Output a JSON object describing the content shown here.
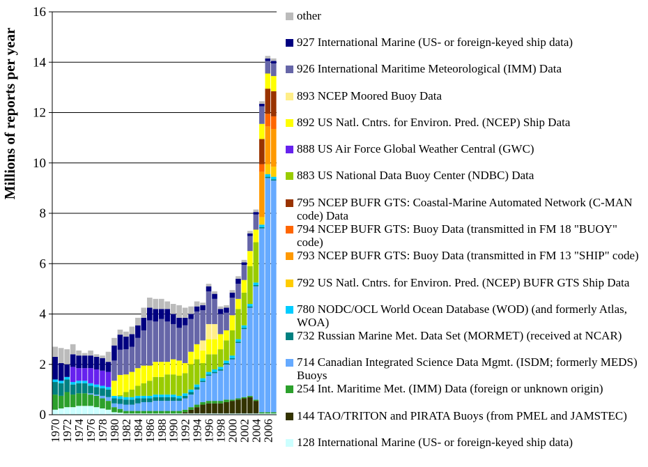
{
  "chart_data": {
    "type": "bar",
    "stacked": true,
    "ylabel": "Millions of reports per year",
    "xlabel": "",
    "ylim": [
      0,
      16
    ],
    "yticks": [
      0,
      2,
      4,
      6,
      8,
      10,
      12,
      14,
      16
    ],
    "grid": "horizontal",
    "legend_position": "right",
    "categories": [
      1970,
      1971,
      1972,
      1973,
      1974,
      1975,
      1976,
      1977,
      1978,
      1979,
      1980,
      1981,
      1982,
      1983,
      1984,
      1985,
      1986,
      1987,
      1988,
      1989,
      1990,
      1991,
      1992,
      1993,
      1994,
      1995,
      1996,
      1997,
      1998,
      1999,
      2000,
      2001,
      2002,
      2003,
      2004,
      2005,
      2006,
      2007
    ],
    "xtick_labels": [
      "1970",
      "1972",
      "1974",
      "1976",
      "1978",
      "1980",
      "1982",
      "1984",
      "1986",
      "1988",
      "1990",
      "1992",
      "1994",
      "1996",
      "1998",
      "2000",
      "2002",
      "2004",
      "2006"
    ],
    "series": [
      {
        "name": "128 International Marine (US- or foreign-keyed ship data)",
        "color": "#ccffff",
        "values": [
          0.2,
          0.25,
          0.3,
          0.3,
          0.35,
          0.35,
          0.35,
          0.3,
          0.25,
          0.2,
          0.1,
          0.08,
          0.05,
          0.05,
          0.05,
          0.05,
          0.05,
          0.05,
          0.05,
          0.05,
          0.05,
          0.05,
          0.05,
          0.05,
          0.05,
          0.05,
          0.05,
          0.05,
          0.05,
          0.05,
          0.05,
          0.05,
          0.05,
          0.05,
          0.05,
          0.05,
          0.05,
          0.05
        ]
      },
      {
        "name": "144 TAO/TRITON and PIRATA Buoys (from PMEL and JAMSTEC)",
        "color": "#333300",
        "values": [
          0,
          0,
          0,
          0,
          0,
          0,
          0,
          0,
          0,
          0,
          0,
          0,
          0,
          0,
          0,
          0,
          0,
          0,
          0,
          0,
          0,
          0,
          0.05,
          0.15,
          0.25,
          0.35,
          0.4,
          0.4,
          0.4,
          0.45,
          0.5,
          0.55,
          0.6,
          0.65,
          0.5,
          0,
          0,
          0
        ]
      },
      {
        "name": "254 Int. Maritime Met. (IMM) Data (foreign or unknown origin)",
        "color": "#2ca02c",
        "values": [
          0.6,
          0.5,
          0.6,
          0.5,
          0.5,
          0.5,
          0.45,
          0.45,
          0.4,
          0.35,
          0.2,
          0.15,
          0.1,
          0.1,
          0.1,
          0.1,
          0.1,
          0.1,
          0.1,
          0.1,
          0.1,
          0.1,
          0.1,
          0.1,
          0.1,
          0.1,
          0.1,
          0.1,
          0.1,
          0.1,
          0.05,
          0.05,
          0.05,
          0.05,
          0.05,
          0.05,
          0.05,
          0.05
        ]
      },
      {
        "name": "714 Canadian Integrated Science Data Mgmt. (ISDM; formerly MEDS) Buoys",
        "color": "#66aaff",
        "values": [
          0,
          0,
          0,
          0,
          0,
          0,
          0.05,
          0.05,
          0.1,
          0.15,
          0.15,
          0.2,
          0.25,
          0.25,
          0.3,
          0.35,
          0.35,
          0.4,
          0.4,
          0.4,
          0.4,
          0.4,
          0.45,
          0.5,
          0.6,
          0.8,
          1.0,
          1.1,
          1.2,
          1.4,
          1.6,
          2.2,
          2.7,
          3.5,
          4.5,
          7.3,
          9.3,
          9.2
        ]
      },
      {
        "name": "732 Russian Marine Met. Data Set (MORMET) (received at NCAR)",
        "color": "#008080",
        "values": [
          0.5,
          0.5,
          0.5,
          0.4,
          0.4,
          0.4,
          0.3,
          0.3,
          0.3,
          0.3,
          0.2,
          0.2,
          0.2,
          0.2,
          0.2,
          0.15,
          0.15,
          0.15,
          0.15,
          0.15,
          0.15,
          0.1,
          0.1,
          0.1,
          0.1,
          0.05,
          0.05,
          0.05,
          0.05,
          0.05,
          0.05,
          0.05,
          0.05,
          0.05,
          0.05,
          0.05,
          0.05,
          0.05
        ]
      },
      {
        "name": "780 NODC/OCL World Ocean Database (WOD) (and formerly Atlas, WOA)",
        "color": "#00ccff",
        "values": [
          0.1,
          0.1,
          0.1,
          0.1,
          0.1,
          0.1,
          0.1,
          0.1,
          0.1,
          0.1,
          0.1,
          0.1,
          0.1,
          0.1,
          0.1,
          0.1,
          0.1,
          0.1,
          0.1,
          0.1,
          0.1,
          0.1,
          0.1,
          0.1,
          0.1,
          0.1,
          0.1,
          0.1,
          0.1,
          0.1,
          0.1,
          0.1,
          0.1,
          0.1,
          0.1,
          0.1,
          0.1,
          0.1
        ]
      },
      {
        "name": "792 US Natl. Cntrs. for Environ. Pred. (NCEP) BUFR GTS Ship Data",
        "color": "#ffcc00",
        "values": [
          0,
          0,
          0,
          0,
          0,
          0,
          0,
          0,
          0,
          0,
          0,
          0,
          0,
          0,
          0,
          0,
          0,
          0,
          0,
          0,
          0,
          0,
          0,
          0,
          0,
          0,
          0,
          0,
          0,
          0,
          0,
          0,
          0,
          0,
          0,
          0.3,
          0.4,
          0.4
        ]
      },
      {
        "name": "793 NCEP BUFR GTS: Buoy Data (transmitted in FM 13 \"SHIP\" code)",
        "color": "#ff9900",
        "values": [
          0,
          0,
          0,
          0,
          0,
          0,
          0,
          0,
          0,
          0,
          0,
          0,
          0,
          0,
          0,
          0,
          0,
          0,
          0,
          0,
          0,
          0,
          0,
          0,
          0,
          0,
          0,
          0,
          0,
          0,
          0,
          0,
          0,
          0,
          0,
          1.8,
          1.5,
          1.5
        ]
      },
      {
        "name": "794 NCEP BUFR GTS: Buoy Data (transmitted in FM 18 \"BUOY\" code)",
        "color": "#ff6600",
        "values": [
          0,
          0,
          0,
          0,
          0,
          0,
          0,
          0,
          0,
          0,
          0,
          0,
          0,
          0,
          0,
          0,
          0,
          0,
          0,
          0,
          0,
          0,
          0,
          0,
          0,
          0,
          0,
          0,
          0,
          0,
          0,
          0,
          0,
          0,
          0,
          0.3,
          0.5,
          0.5
        ]
      },
      {
        "name": "795 NCEP BUFR GTS: Coastal-Marine Automated Network (C-MAN code) Data",
        "color": "#993300",
        "values": [
          0,
          0,
          0,
          0,
          0,
          0,
          0,
          0,
          0,
          0,
          0,
          0,
          0,
          0,
          0,
          0,
          0,
          0,
          0,
          0,
          0,
          0,
          0,
          0,
          0,
          0,
          0,
          0,
          0,
          0,
          0,
          0,
          0,
          0,
          0,
          1.0,
          1.0,
          1.0
        ]
      },
      {
        "name": "883 US National Data Buoy Center (NDBC) Data",
        "color": "#99cc00",
        "values": [
          0,
          0,
          0,
          0,
          0,
          0,
          0,
          0,
          0,
          0,
          0,
          0.05,
          0.2,
          0.3,
          0.4,
          0.5,
          0.6,
          0.7,
          0.7,
          0.8,
          0.8,
          0.8,
          0.8,
          1.0,
          1.0,
          0.6,
          0.7,
          0.6,
          0.7,
          0.8,
          1.0,
          1.2,
          1.3,
          1.5,
          1.6,
          0,
          0,
          0
        ]
      },
      {
        "name": "888 US Air Force Global Weather Central (GWC)",
        "color": "#6622ee",
        "values": [
          0,
          0,
          0,
          0.6,
          0.5,
          0.5,
          0.6,
          0.6,
          0.6,
          0.6,
          0,
          0,
          0,
          0,
          0,
          0,
          0,
          0,
          0,
          0,
          0,
          0,
          0,
          0,
          0,
          0,
          0,
          0,
          0,
          0,
          0,
          0,
          0,
          0,
          0,
          0,
          0,
          0
        ]
      },
      {
        "name": "892 US Natl. Cntrs. for Environ. Pred. (NCEP) Ship Data",
        "color": "#ffff00",
        "values": [
          0,
          0,
          0,
          0,
          0,
          0,
          0,
          0,
          0,
          0,
          0.6,
          0.8,
          0.7,
          0.7,
          0.7,
          0.7,
          0.6,
          0.6,
          0.6,
          0.5,
          0.6,
          0.6,
          0.4,
          0.5,
          0.6,
          0.5,
          0.6,
          0.6,
          0.6,
          0.4,
          0.6,
          0.4,
          0.5,
          0.6,
          0.5,
          0.6,
          0.6,
          0.6
        ]
      },
      {
        "name": "893 NCEP Moored Buoy Data",
        "color": "#ffee88",
        "values": [
          0,
          0,
          0,
          0,
          0,
          0,
          0,
          0,
          0,
          0,
          0,
          0,
          0,
          0,
          0,
          0,
          0,
          0,
          0,
          0,
          0,
          0,
          0,
          0,
          0,
          0.4,
          0.6,
          0.6,
          0,
          0,
          0,
          0,
          0,
          0,
          0,
          0,
          0,
          0
        ]
      },
      {
        "name": "926 International Maritime Meteorological (IMM) Data",
        "color": "#6666a8",
        "values": [
          0,
          0,
          0,
          0,
          0,
          0,
          0,
          0,
          0,
          0,
          0.8,
          1.0,
          1.0,
          1.0,
          1.2,
          1.4,
          1.8,
          1.6,
          1.7,
          1.6,
          1.4,
          1.3,
          1.5,
          1.3,
          1.3,
          1.2,
          1.3,
          1.0,
          0.8,
          0.7,
          0.7,
          0.6,
          0.6,
          0.6,
          0.6,
          0.7,
          0.5,
          0.5
        ]
      },
      {
        "name": "927 International Marine (US- or foreign-keyed ship data)",
        "color": "#000080",
        "values": [
          0.9,
          0.7,
          0.5,
          0.5,
          0.5,
          0.5,
          0.5,
          0.5,
          0.5,
          0.4,
          0.6,
          0.6,
          0.5,
          0.5,
          0.5,
          0.5,
          0.5,
          0.5,
          0.4,
          0.5,
          0.4,
          0.4,
          0.3,
          0.2,
          0.2,
          0.2,
          0.2,
          0.2,
          0.2,
          0.2,
          0.2,
          0.2,
          0.1,
          0.1,
          0.1,
          0.1,
          0.1,
          0.1
        ]
      },
      {
        "name": "other",
        "color": "#bbbbbb",
        "values": [
          0.4,
          0.6,
          0.6,
          0.4,
          0.2,
          0.1,
          0.2,
          0.1,
          0.1,
          0.4,
          0.3,
          0.2,
          0.2,
          0.3,
          0.3,
          0.4,
          0.4,
          0.4,
          0.4,
          0.3,
          0.4,
          0.5,
          0.4,
          0.3,
          0.2,
          0.1,
          0.1,
          0.1,
          0.1,
          0.1,
          0.1,
          0.1,
          0.1,
          0.1,
          0.1,
          0.1,
          0.1,
          0.1
        ]
      }
    ]
  }
}
